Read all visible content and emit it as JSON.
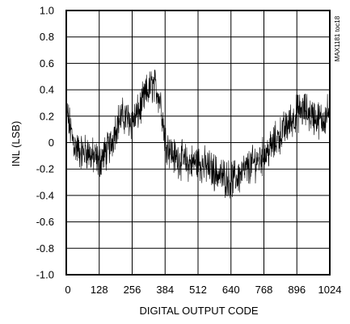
{
  "chart_data": {
    "type": "line",
    "title": "",
    "xlabel": "DIGITAL OUTPUT CODE",
    "ylabel": "INL (LSB)",
    "figure_id": "MAX1181 toc18",
    "xlim": [
      0,
      1024
    ],
    "ylim": [
      -1.0,
      1.0
    ],
    "x_ticks": [
      0,
      128,
      256,
      384,
      512,
      640,
      768,
      896,
      1024
    ],
    "y_ticks": [
      -1.0,
      -0.8,
      -0.6,
      -0.4,
      -0.2,
      0,
      0.2,
      0.4,
      0.6,
      0.8,
      1.0
    ],
    "y_tick_labels": [
      "-1.0",
      "-0.8",
      "-0.6",
      "-0.4",
      "-0.2",
      "0",
      "0.2",
      "0.4",
      "0.6",
      "0.8",
      "1.0"
    ],
    "grid": true,
    "line_color": "#000000",
    "series": [
      {
        "x": [
          0,
          16,
          32,
          48,
          64,
          80,
          96,
          112,
          128,
          144,
          160,
          176,
          192,
          208,
          224,
          240,
          256,
          272,
          288,
          304,
          320,
          336,
          352,
          368,
          384,
          400,
          416,
          432,
          448,
          464,
          480,
          496,
          512,
          528,
          544,
          560,
          576,
          592,
          608,
          624,
          640,
          656,
          672,
          688,
          704,
          720,
          736,
          752,
          768,
          784,
          800,
          816,
          832,
          848,
          864,
          880,
          896,
          912,
          928,
          944,
          960,
          976,
          992,
          1008,
          1024
        ],
        "values": [
          0.25,
          0.1,
          -0.02,
          -0.06,
          -0.08,
          -0.06,
          -0.1,
          -0.12,
          -0.14,
          -0.1,
          -0.06,
          0.0,
          0.12,
          0.18,
          0.2,
          0.18,
          0.16,
          0.2,
          0.26,
          0.34,
          0.4,
          0.44,
          0.4,
          0.3,
          0.02,
          -0.04,
          -0.1,
          -0.12,
          -0.13,
          -0.15,
          -0.16,
          -0.15,
          -0.14,
          -0.17,
          -0.18,
          -0.2,
          -0.22,
          -0.24,
          -0.26,
          -0.27,
          -0.28,
          -0.27,
          -0.25,
          -0.22,
          -0.2,
          -0.17,
          -0.14,
          -0.12,
          -0.1,
          -0.06,
          -0.03,
          0.02,
          0.06,
          0.1,
          0.14,
          0.18,
          0.22,
          0.24,
          0.24,
          0.22,
          0.2,
          0.18,
          0.17,
          0.2,
          0.25
        ]
      }
    ]
  }
}
